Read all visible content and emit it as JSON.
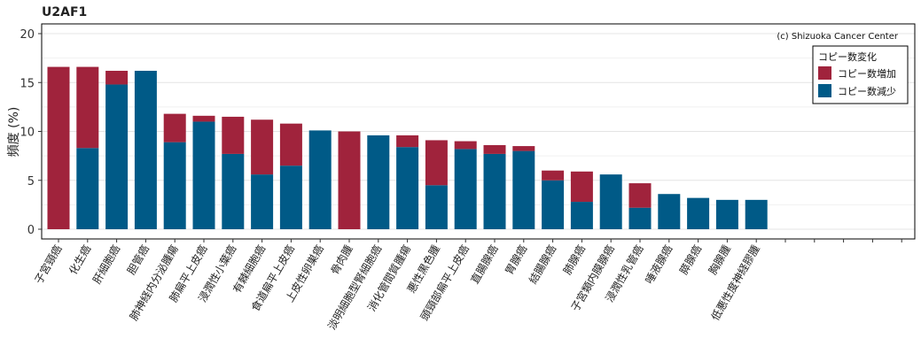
{
  "chart_data": {
    "type": "bar",
    "stacked": true,
    "title": "U2AF1",
    "ylabel": "頻度 (%)",
    "xlabel": "",
    "ylim": [
      0,
      20
    ],
    "yticks": [
      0,
      5,
      10,
      15,
      20
    ],
    "grid": true,
    "credit": "(c) Shizuoka Cancer Center",
    "legend": {
      "title": "コピー数変化",
      "placement": "top-right"
    },
    "categories": [
      "子宮頸癌",
      "化生癌",
      "肝細胞癌",
      "胆管癌",
      "肺神経内分泌腫瘍",
      "肺扁平上皮癌",
      "浸潤性小葉癌",
      "有棘細胞癌",
      "食道扁平上皮癌",
      "上皮性卵巣癌",
      "骨肉腫",
      "淡明細胞型腎細胞癌",
      "消化管間質腫瘍",
      "悪性黒色腫",
      "頭頸部扁平上皮癌",
      "直腸腺癌",
      "胃腺癌",
      "結腸腺癌",
      "肺腺癌",
      "子宮類内膜腺癌",
      "浸潤性乳管癌",
      "唾液腺癌",
      "膵腺癌",
      "胸腺腫",
      "低悪性度神経膠腫"
    ],
    "series": [
      {
        "name": "コピー数減少",
        "color": "#005a87",
        "values": [
          0,
          8.3,
          14.8,
          16.2,
          8.9,
          11.0,
          7.7,
          5.6,
          6.5,
          10.1,
          0,
          9.6,
          8.4,
          4.5,
          8.2,
          7.7,
          8.0,
          5.0,
          2.8,
          5.6,
          2.2,
          3.6,
          3.2,
          3.0,
          3.0
        ]
      },
      {
        "name": "コピー数増加",
        "color": "#a0233c",
        "values": [
          16.6,
          8.3,
          1.4,
          0,
          2.9,
          0.6,
          3.8,
          5.6,
          4.3,
          0,
          10.0,
          0,
          1.2,
          4.6,
          0.8,
          0.9,
          0.5,
          1.0,
          3.1,
          0,
          2.5,
          0,
          0,
          0,
          0
        ]
      }
    ]
  }
}
